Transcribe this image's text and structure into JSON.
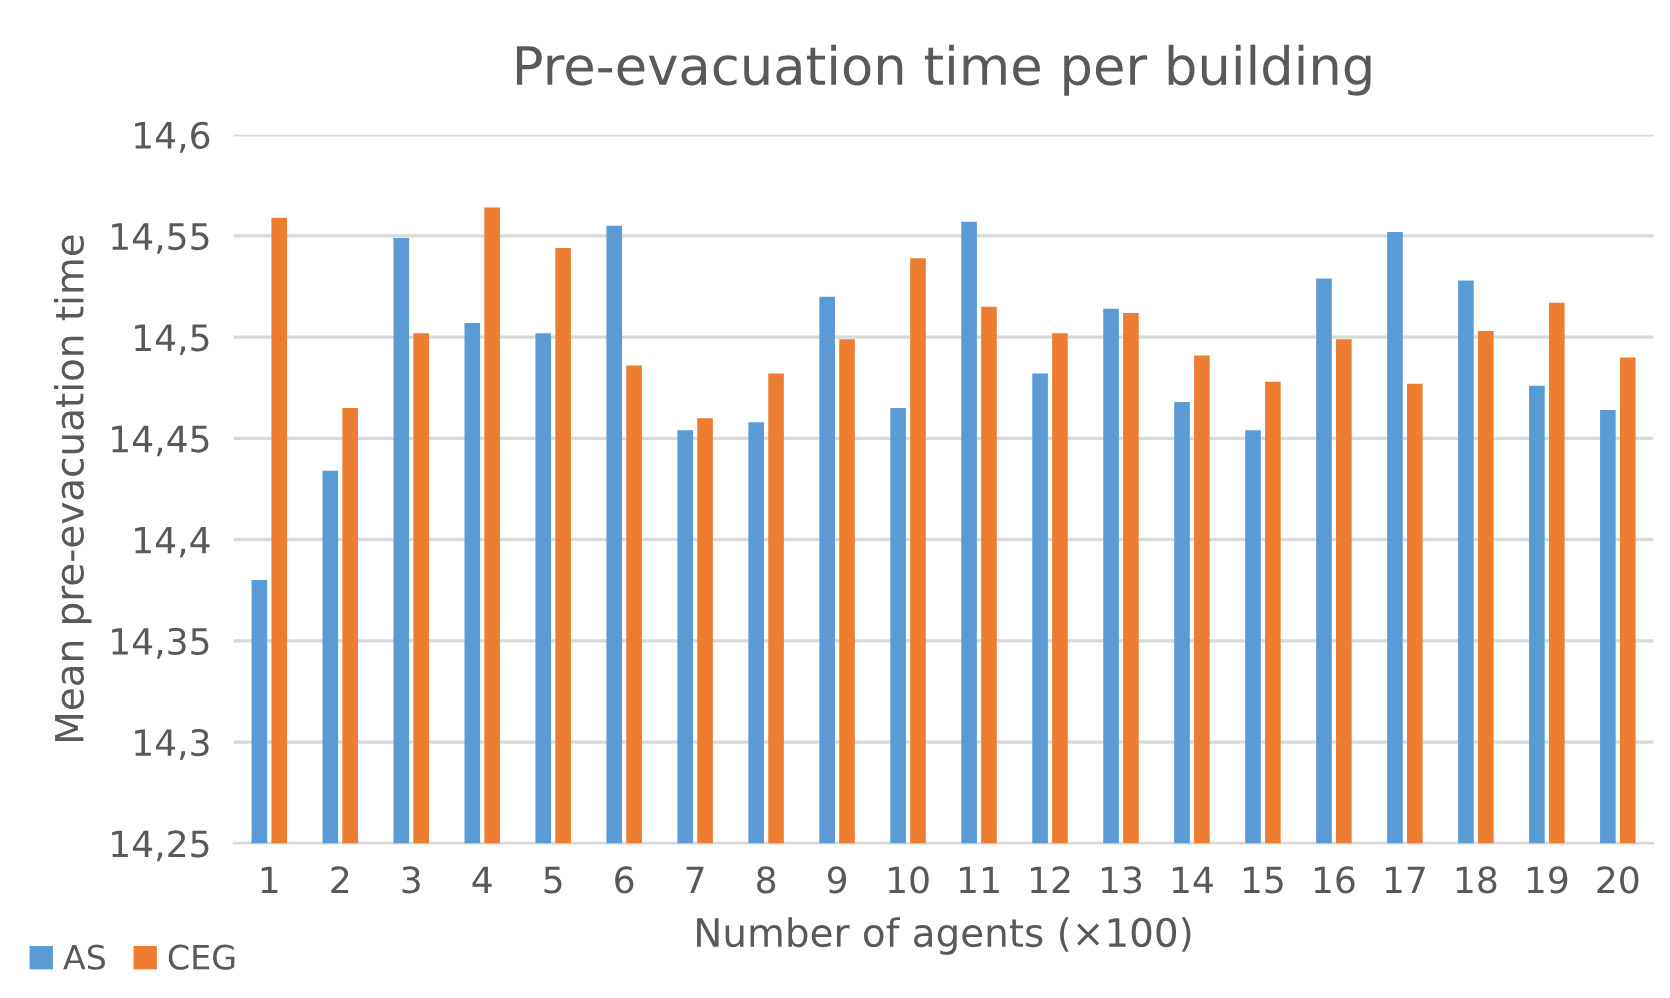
{
  "chart_data": {
    "type": "bar",
    "title": "Pre-evacuation time per building",
    "xlabel": "Number of agents (×100)",
    "ylabel": "Mean pre-evacuation time",
    "categories": [
      "1",
      "2",
      "3",
      "4",
      "5",
      "6",
      "7",
      "8",
      "9",
      "10",
      "11",
      "12",
      "13",
      "14",
      "15",
      "16",
      "17",
      "18",
      "19",
      "20"
    ],
    "series": [
      {
        "name": "AS",
        "color": "#5b9bd5",
        "values": [
          14.38,
          14.434,
          14.549,
          14.507,
          14.502,
          14.555,
          14.454,
          14.458,
          14.52,
          14.465,
          14.557,
          14.482,
          14.514,
          14.468,
          14.454,
          14.529,
          14.552,
          14.528,
          14.476,
          14.464
        ]
      },
      {
        "name": "CEG",
        "color": "#ed7d31",
        "values": [
          14.559,
          14.465,
          14.502,
          14.564,
          14.544,
          14.486,
          14.46,
          14.482,
          14.499,
          14.539,
          14.515,
          14.502,
          14.512,
          14.491,
          14.478,
          14.499,
          14.477,
          14.503,
          14.517,
          14.49
        ]
      }
    ],
    "ylim": [
      14.25,
      14.6
    ],
    "yticks": [
      {
        "value": 14.25,
        "label": "14,25"
      },
      {
        "value": 14.3,
        "label": "14,3"
      },
      {
        "value": 14.35,
        "label": "14,35"
      },
      {
        "value": 14.4,
        "label": "14,4"
      },
      {
        "value": 14.45,
        "label": "14,45"
      },
      {
        "value": 14.5,
        "label": "14,5"
      },
      {
        "value": 14.55,
        "label": "14,55"
      },
      {
        "value": 14.6,
        "label": "14,6"
      }
    ],
    "grid": "y",
    "legend": "bottom left"
  }
}
